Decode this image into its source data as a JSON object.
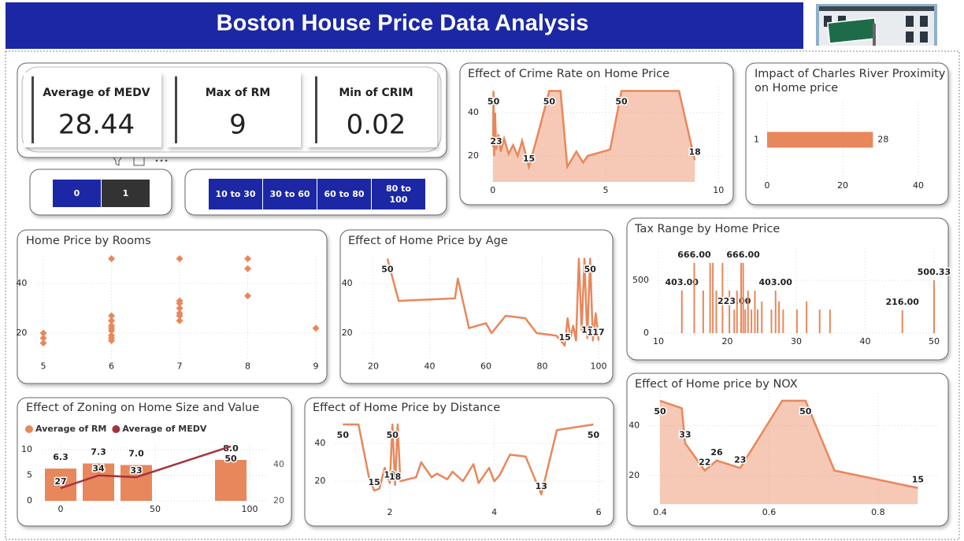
{
  "header": {
    "title": "Boston House Price Data Analysis"
  },
  "cards": [
    {
      "label": "Average of MEDV",
      "value": 28.44
    },
    {
      "label": "Max of RM",
      "value": 9
    },
    {
      "label": "Min of CRIM",
      "value": 0.02
    }
  ],
  "slicers": [
    {
      "options": [
        "0",
        "1"
      ],
      "selected_index": 1
    },
    {
      "options": [
        "10 to 30",
        "30 to 60",
        "60 to 80",
        "80 to 100"
      ]
    }
  ],
  "chart_data": [
    {
      "type": "area",
      "title": "Effect of Crime Rate on Home Price",
      "color": "#e8875b",
      "grid": true,
      "x": [
        0.01,
        0.03,
        0.06,
        0.1,
        0.15,
        0.25,
        0.35,
        0.5,
        0.7,
        0.9,
        1.1,
        1.3,
        1.6,
        2.0,
        2.5,
        3.0,
        3.3,
        3.7,
        4.0,
        4.2,
        5.2,
        5.7,
        8.25,
        8.95
      ],
      "values": [
        24,
        50,
        20,
        40,
        23,
        30,
        22,
        28,
        21,
        25,
        20,
        27,
        15,
        30,
        50,
        50,
        15,
        22,
        17,
        20,
        23,
        50,
        50,
        18
      ],
      "value_labels": [
        null,
        "50",
        null,
        null,
        "23",
        null,
        null,
        null,
        null,
        null,
        null,
        null,
        "15",
        null,
        "50",
        null,
        null,
        null,
        null,
        null,
        null,
        "50",
        null,
        "18"
      ],
      "xlim": [
        -0.2,
        10.2
      ],
      "xticks": [
        0,
        5,
        10
      ],
      "ylim": [
        8,
        52
      ],
      "yticks": [
        20,
        40
      ]
    },
    {
      "type": "bar",
      "horizontal": true,
      "title": "Impact of Charles River Proximity on Home price",
      "color": "#e8875b",
      "grid": true,
      "categories": [
        "1"
      ],
      "values": [
        28
      ],
      "xlim": [
        0,
        45
      ],
      "xticks": [
        0,
        20,
        40
      ]
    },
    {
      "type": "scatter",
      "title": "Home Price by Rooms",
      "color": "#e8875b",
      "grid": true,
      "x": [
        5,
        5,
        5,
        6,
        6,
        6,
        6,
        6,
        6,
        6,
        6,
        6,
        7,
        7,
        7,
        7,
        7,
        7,
        7,
        8,
        8,
        8,
        9
      ],
      "values": [
        20,
        18,
        16,
        50,
        27,
        25,
        23,
        22,
        21,
        19,
        18,
        17,
        50,
        33,
        32,
        30,
        28,
        27,
        25,
        50,
        46,
        35,
        22
      ],
      "xlim": [
        4.9,
        9.1
      ],
      "xticks": [
        5,
        6,
        7,
        8,
        9
      ],
      "ylim": [
        10,
        51
      ],
      "yticks": [
        20,
        40
      ]
    },
    {
      "type": "line",
      "title": "Effect of Home Price by Age",
      "color": "#e8875b",
      "grid": true,
      "x": [
        25,
        29,
        49,
        50,
        54,
        60,
        62,
        67,
        74,
        78,
        85,
        88,
        89,
        90,
        91,
        92,
        93,
        94,
        95,
        96,
        97,
        98,
        99,
        100
      ],
      "values": [
        50,
        33,
        34,
        42,
        22,
        24,
        20,
        27,
        26,
        20,
        19,
        15,
        26,
        18,
        23,
        17,
        50,
        21,
        50,
        18,
        50,
        17,
        28,
        17
      ],
      "value_labels": [
        "50",
        null,
        null,
        null,
        null,
        null,
        null,
        null,
        null,
        null,
        null,
        "15",
        null,
        null,
        null,
        null,
        null,
        null,
        null,
        "18",
        "50",
        "17",
        null,
        "17"
      ],
      "xlim": [
        16,
        100
      ],
      "xticks": [
        20,
        40,
        60,
        80,
        100
      ],
      "ylim": [
        10,
        51
      ],
      "yticks": [
        20,
        40
      ]
    },
    {
      "type": "bar",
      "title": "Tax Range by Home Price",
      "color": "#e8875b",
      "grid": true,
      "x": [
        13.4,
        15.2,
        16.5,
        17.5,
        17.9,
        18.4,
        19.3,
        20.3,
        21.0,
        21.4,
        22.0,
        22.3,
        22.6,
        23.0,
        23.5,
        24.0,
        24.4,
        25.0,
        26.4,
        27.0,
        27.5,
        28.1,
        30.1,
        31.5,
        33.4,
        34.9,
        45.4,
        50.0
      ],
      "values": [
        403,
        666,
        403,
        666,
        666,
        403,
        666,
        403,
        223,
        403,
        666,
        666,
        223,
        403,
        223,
        403,
        223,
        300,
        223,
        403,
        300,
        223,
        223,
        300,
        223,
        223,
        216,
        500.33
      ],
      "value_labels": [
        "403.00",
        "666.00",
        null,
        null,
        null,
        null,
        null,
        null,
        "223.00",
        null,
        null,
        "666.00",
        null,
        null,
        null,
        null,
        null,
        null,
        null,
        "403.00",
        null,
        null,
        null,
        null,
        null,
        null,
        "216.00",
        "500.33"
      ],
      "xlim": [
        10,
        50
      ],
      "xticks": [
        10,
        20,
        30,
        40,
        50
      ],
      "ylim": [
        0,
        800
      ],
      "yticks": [
        0,
        500
      ]
    },
    {
      "type": "combo",
      "title": "Effect of Zoning on Home Size and Value",
      "grid": true,
      "x": [
        0,
        20,
        40,
        90
      ],
      "series": [
        {
          "name": "Average of RM",
          "type": "bar",
          "color": "#e8875b",
          "values": [
            6.3,
            7.3,
            7.0,
            8.0
          ],
          "value_labels": [
            "6.3",
            "7.3",
            "7.0",
            "8.0"
          ]
        },
        {
          "name": "Average of MEDV",
          "type": "line",
          "axis": "y2",
          "color": "#a3343d",
          "values": [
            27,
            34,
            33,
            50
          ]
        }
      ],
      "xlim": [
        -10,
        110
      ],
      "xticks": [
        0,
        50,
        100
      ],
      "ylim": [
        0,
        11
      ],
      "yticks": [
        0,
        5,
        10
      ],
      "y2lim": [
        20,
        51
      ],
      "y2ticks": [
        20,
        40
      ]
    },
    {
      "type": "line",
      "title": "Effect of Home Price by Distance",
      "color": "#e8875b",
      "grid": true,
      "x": [
        1.1,
        1.4,
        1.6,
        1.7,
        1.8,
        1.9,
        2.0,
        2.05,
        2.1,
        2.15,
        2.2,
        2.5,
        2.6,
        2.8,
        2.9,
        3.1,
        3.2,
        3.4,
        3.6,
        3.7,
        3.9,
        4.0,
        4.1,
        4.3,
        4.6,
        4.9,
        5.2,
        5.9
      ],
      "values": [
        50,
        50,
        22,
        15,
        16,
        27,
        19,
        50,
        18,
        50,
        20,
        22,
        30,
        22,
        24,
        21,
        25,
        20,
        29,
        19,
        27,
        20,
        23,
        34,
        33,
        13,
        47,
        50
      ],
      "value_labels": [
        "50",
        null,
        null,
        "15",
        null,
        null,
        "19",
        "50",
        "18",
        null,
        null,
        null,
        null,
        null,
        null,
        null,
        null,
        null,
        null,
        null,
        null,
        null,
        null,
        null,
        null,
        "13",
        null,
        "50"
      ],
      "xlim": [
        0.95,
        6.1
      ],
      "xticks": [
        2,
        4,
        6
      ],
      "ylim": [
        8,
        53
      ],
      "yticks": [
        20,
        40
      ]
    },
    {
      "type": "area",
      "title": "Effect of Home price by NOX",
      "color": "#e8875b",
      "grid": true,
      "x": [
        0.4,
        0.44,
        0.446,
        0.482,
        0.504,
        0.547,
        0.624,
        0.667,
        0.72,
        0.873
      ],
      "values": [
        50,
        47,
        33,
        22,
        26,
        23,
        50,
        50,
        22,
        15
      ],
      "value_labels": [
        "50",
        null,
        "33",
        "22",
        "26",
        "23",
        null,
        "50",
        null,
        "15"
      ],
      "xlim": [
        0.38,
        0.91
      ],
      "xticks": [
        0.4,
        0.6,
        0.8
      ],
      "ylim": [
        8.5,
        53
      ],
      "yticks": [
        20,
        40
      ]
    }
  ]
}
